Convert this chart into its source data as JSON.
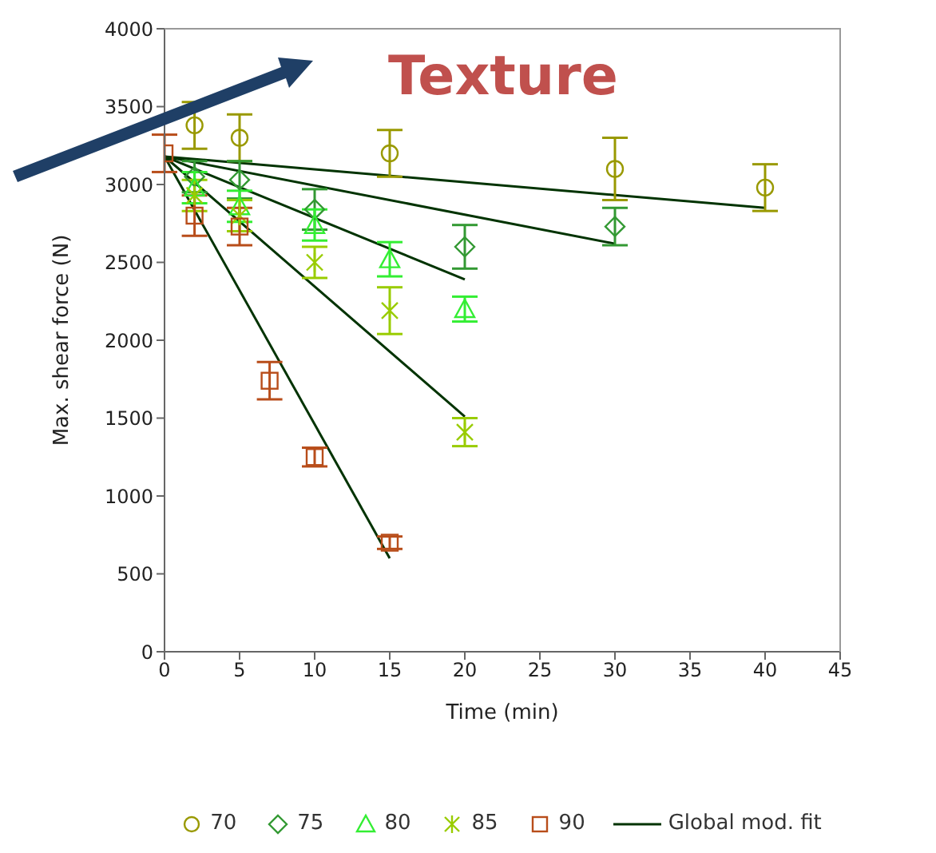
{
  "chart_data": {
    "type": "scatter",
    "xlabel": "Time (min)",
    "ylabel": "Max. shear force (N)",
    "annotations": [
      "Texture"
    ],
    "xlim": [
      0,
      45
    ],
    "xticks": [
      0,
      5,
      10,
      15,
      20,
      25,
      30,
      35,
      40,
      45
    ],
    "ylim": [
      0,
      4000
    ],
    "yticks": [
      0,
      500,
      1000,
      1500,
      2000,
      2500,
      3000,
      3500,
      4000
    ],
    "legend": "bottom",
    "series": [
      {
        "name": "70",
        "color": "#999900",
        "marker": "circle",
        "x": [
          2,
          5,
          15,
          30,
          40
        ],
        "values": [
          3380,
          3300,
          3200,
          3100,
          2980
        ],
        "errors": [
          150,
          150,
          150,
          200,
          150
        ]
      },
      {
        "name": "75",
        "color": "#339933",
        "marker": "diamond",
        "x": [
          2,
          5,
          10,
          20,
          30
        ],
        "values": [
          3050,
          3030,
          2840,
          2600,
          2730
        ],
        "errors": [
          100,
          120,
          130,
          140,
          120
        ]
      },
      {
        "name": "80",
        "color": "#33ee33",
        "marker": "triangle",
        "x": [
          2,
          5,
          10,
          15,
          20
        ],
        "values": [
          2980,
          2860,
          2740,
          2520,
          2200
        ],
        "errors": [
          100,
          100,
          100,
          110,
          80
        ]
      },
      {
        "name": "85",
        "color": "#99cc00",
        "marker": "cross",
        "x": [
          2,
          5,
          10,
          15,
          20
        ],
        "values": [
          2930,
          2800,
          2500,
          2190,
          1410
        ],
        "errors": [
          100,
          100,
          100,
          150,
          90
        ]
      },
      {
        "name": "90",
        "color": "#b84d1a",
        "marker": "square",
        "x": [
          0,
          2,
          5,
          7,
          10,
          15
        ],
        "values": [
          3200,
          2800,
          2730,
          1740,
          1250,
          700
        ],
        "errors": [
          120,
          130,
          120,
          120,
          60,
          40
        ]
      },
      {
        "name": "Global mod. fit",
        "type": "line",
        "color": "#003300",
        "marker": "none",
        "x": [
          0,
          40
        ],
        "values": [
          3180,
          2850
        ]
      },
      {
        "type": "line",
        "color": "#003300",
        "marker": "none",
        "x": [
          0,
          30
        ],
        "values": [
          3180,
          2620
        ]
      },
      {
        "type": "line",
        "color": "#003300",
        "marker": "none",
        "x": [
          0,
          20
        ],
        "values": [
          3180,
          2390
        ]
      },
      {
        "type": "line",
        "color": "#003300",
        "marker": "none",
        "x": [
          0,
          20
        ],
        "values": [
          3180,
          1510
        ]
      },
      {
        "type": "line",
        "color": "#003300",
        "marker": "none",
        "x": [
          0,
          15
        ],
        "values": [
          3180,
          600
        ]
      }
    ]
  }
}
